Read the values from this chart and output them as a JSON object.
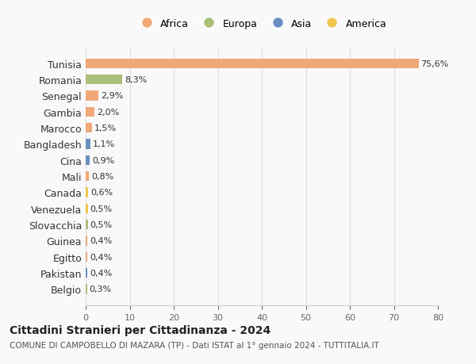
{
  "countries": [
    "Tunisia",
    "Romania",
    "Senegal",
    "Gambia",
    "Marocco",
    "Bangladesh",
    "Cina",
    "Mali",
    "Canada",
    "Venezuela",
    "Slovacchia",
    "Guinea",
    "Egitto",
    "Pakistan",
    "Belgio"
  ],
  "values": [
    75.6,
    8.3,
    2.9,
    2.0,
    1.5,
    1.1,
    0.9,
    0.8,
    0.6,
    0.5,
    0.5,
    0.4,
    0.4,
    0.4,
    0.3
  ],
  "labels": [
    "75,6%",
    "8,3%",
    "2,9%",
    "2,0%",
    "1,5%",
    "1,1%",
    "0,9%",
    "0,8%",
    "0,6%",
    "0,5%",
    "0,5%",
    "0,4%",
    "0,4%",
    "0,4%",
    "0,3%"
  ],
  "continents": [
    "Africa",
    "Europa",
    "Africa",
    "Africa",
    "Africa",
    "Asia",
    "Asia",
    "Africa",
    "America",
    "America",
    "Europa",
    "Africa",
    "Africa",
    "Asia",
    "Europa"
  ],
  "continent_colors": {
    "Africa": "#F0A878",
    "Europa": "#AABF7A",
    "Asia": "#6B8FC2",
    "America": "#F0C850"
  },
  "legend_order": [
    "Africa",
    "Europa",
    "Asia",
    "America"
  ],
  "title": "Cittadini Stranieri per Cittadinanza - 2024",
  "subtitle": "COMUNE DI CAMPOBELLO DI MAZARA (TP) - Dati ISTAT al 1° gennaio 2024 - TUTTITALIA.IT",
  "xlim": [
    0,
    80
  ],
  "xticks": [
    0,
    10,
    20,
    30,
    40,
    50,
    60,
    70,
    80
  ],
  "background_color": "#f9f9f9",
  "grid_color": "#e0e0e0"
}
